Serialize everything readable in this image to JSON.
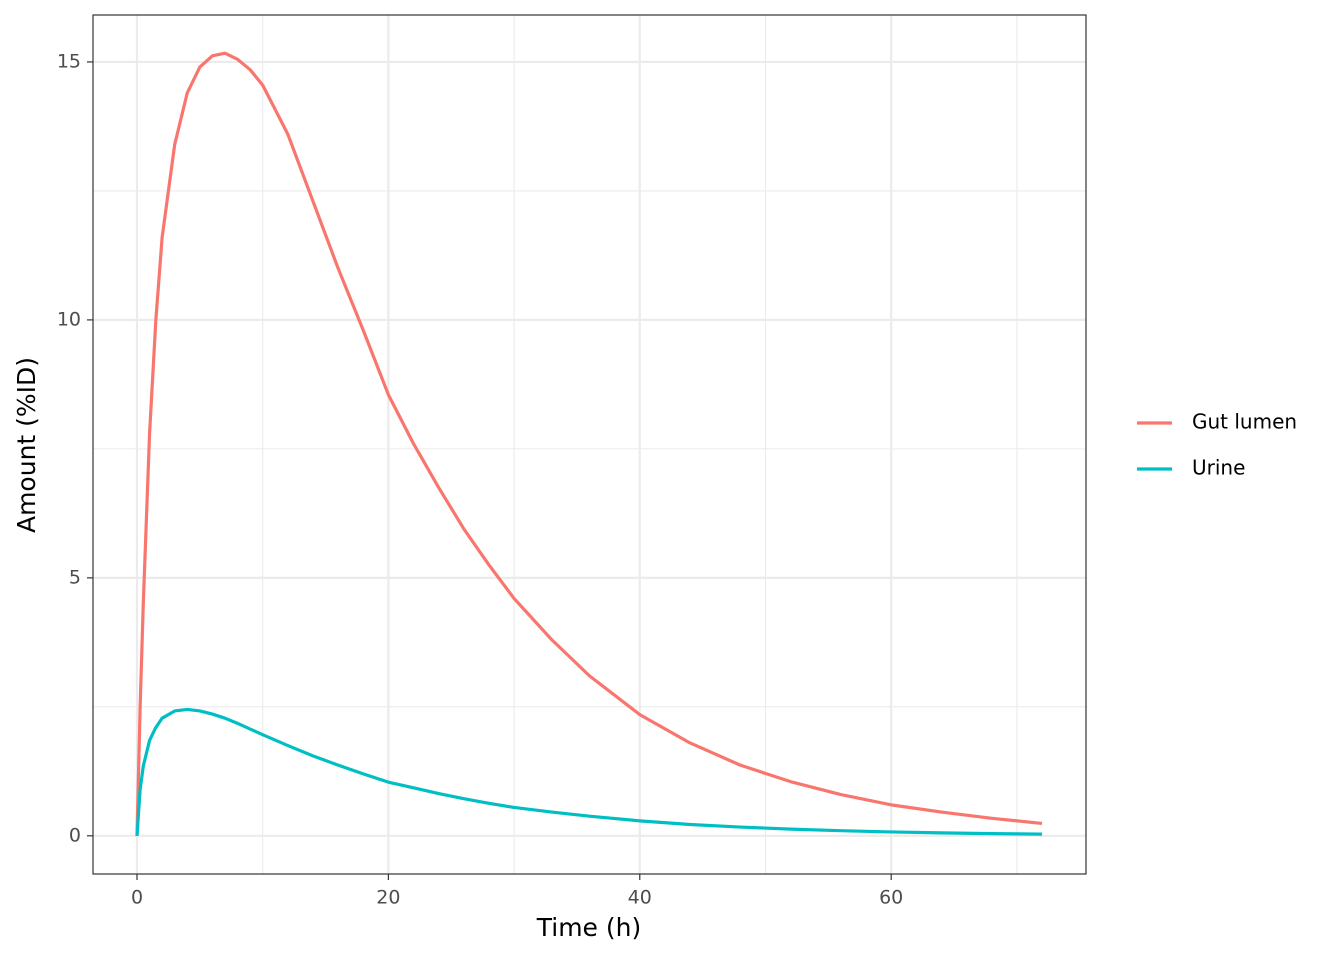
{
  "chart_data": {
    "type": "line",
    "xlabel": "Time (h)",
    "ylabel": "Amount (%ID)",
    "x": [
      0,
      0.25,
      0.5,
      1,
      1.5,
      2,
      3,
      4,
      5,
      6,
      7,
      8,
      9,
      10,
      12,
      14,
      16,
      18,
      20,
      22,
      24,
      26,
      28,
      30,
      33,
      36,
      40,
      44,
      48,
      52,
      56,
      60,
      64,
      68,
      72
    ],
    "series": [
      {
        "name": "Gut lumen",
        "color": "#F8766D",
        "values": [
          0,
          2.5,
          4.5,
          7.8,
          10.0,
          11.6,
          13.4,
          14.4,
          14.9,
          15.12,
          15.17,
          15.05,
          14.85,
          14.55,
          13.6,
          12.3,
          11.0,
          9.8,
          8.55,
          7.6,
          6.75,
          5.95,
          5.25,
          4.6,
          3.8,
          3.1,
          2.35,
          1.8,
          1.37,
          1.05,
          0.8,
          0.6,
          0.46,
          0.34,
          0.24
        ]
      },
      {
        "name": "Urine",
        "color": "#00BFC4",
        "values": [
          0,
          0.9,
          1.35,
          1.85,
          2.1,
          2.28,
          2.42,
          2.45,
          2.42,
          2.36,
          2.28,
          2.18,
          2.07,
          1.96,
          1.75,
          1.55,
          1.37,
          1.2,
          1.04,
          0.93,
          0.82,
          0.72,
          0.63,
          0.55,
          0.46,
          0.38,
          0.29,
          0.22,
          0.17,
          0.13,
          0.1,
          0.075,
          0.057,
          0.043,
          0.033
        ]
      }
    ],
    "xlim": [
      -3.5,
      75.5
    ],
    "xticks": [
      0,
      20,
      40,
      60
    ],
    "xminor": [
      10,
      30,
      50,
      70
    ],
    "ylim": [
      -0.74,
      15.91
    ],
    "yticks": [
      0,
      5,
      10,
      15
    ],
    "yminor": [
      2.5,
      7.5,
      12.5
    ],
    "grid": true,
    "legend": "right"
  }
}
